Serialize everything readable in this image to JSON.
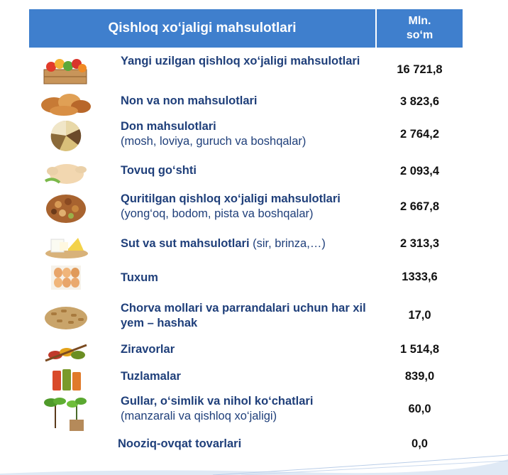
{
  "header": {
    "title": "Qishloq xo‘jaligi mahsulotlari",
    "unit_line1": "Mln.",
    "unit_line2": "so‘m"
  },
  "rows": [
    {
      "icon": "vegetable-crate-icon",
      "main": "Yangi uzilgan qishloq xo‘jaligi mahsulotlari",
      "sub": "",
      "value": "16 721,8"
    },
    {
      "icon": "bread-icon",
      "main": "Non va non mahsulotlari",
      "sub": "",
      "value": "3 823,6"
    },
    {
      "icon": "grains-icon",
      "main": "Don mahsulotlari",
      "sub": "(mosh, loviya, guruch va boshqalar)",
      "value": "2 764,2"
    },
    {
      "icon": "chicken-icon",
      "main": "Tovuq go‘shti",
      "sub": "",
      "value": "2 093,4"
    },
    {
      "icon": "nuts-icon",
      "main": "Quritilgan qishloq xo‘jaligi mahsulotlari",
      "sub": "(yong‘oq, bodom, pista va boshqalar)",
      "value": "2 667,8"
    },
    {
      "icon": "dairy-icon",
      "main": "Sut va sut mahsulotlari",
      "sub": " (sir, brinza,…)",
      "value": "2 313,3"
    },
    {
      "icon": "eggs-icon",
      "main": "Tuxum",
      "sub": "",
      "value": "1333,6"
    },
    {
      "icon": "feed-pellets-icon",
      "main": "Chorva mollari va parrandalari uchun har xil yem – hashak",
      "sub": "",
      "value": "17,0"
    },
    {
      "icon": "spices-icon",
      "main": "Ziravorlar",
      "sub": "",
      "value": "1 514,8"
    },
    {
      "icon": "pickles-icon",
      "main": "Tuzlamalar",
      "sub": "",
      "value": "839,0"
    },
    {
      "icon": "seedlings-icon",
      "main": "Gullar, o‘simlik va nihol ko‘chatlari",
      "sub": "(manzarali va qishloq xo‘jaligi)",
      "value": "60,0"
    },
    {
      "icon": "",
      "main": "Noozіq-ovqat tovarlari",
      "sub": "",
      "value": "0,0"
    }
  ],
  "colors": {
    "header": "#3f7fcd",
    "label": "#1f3f7a"
  }
}
